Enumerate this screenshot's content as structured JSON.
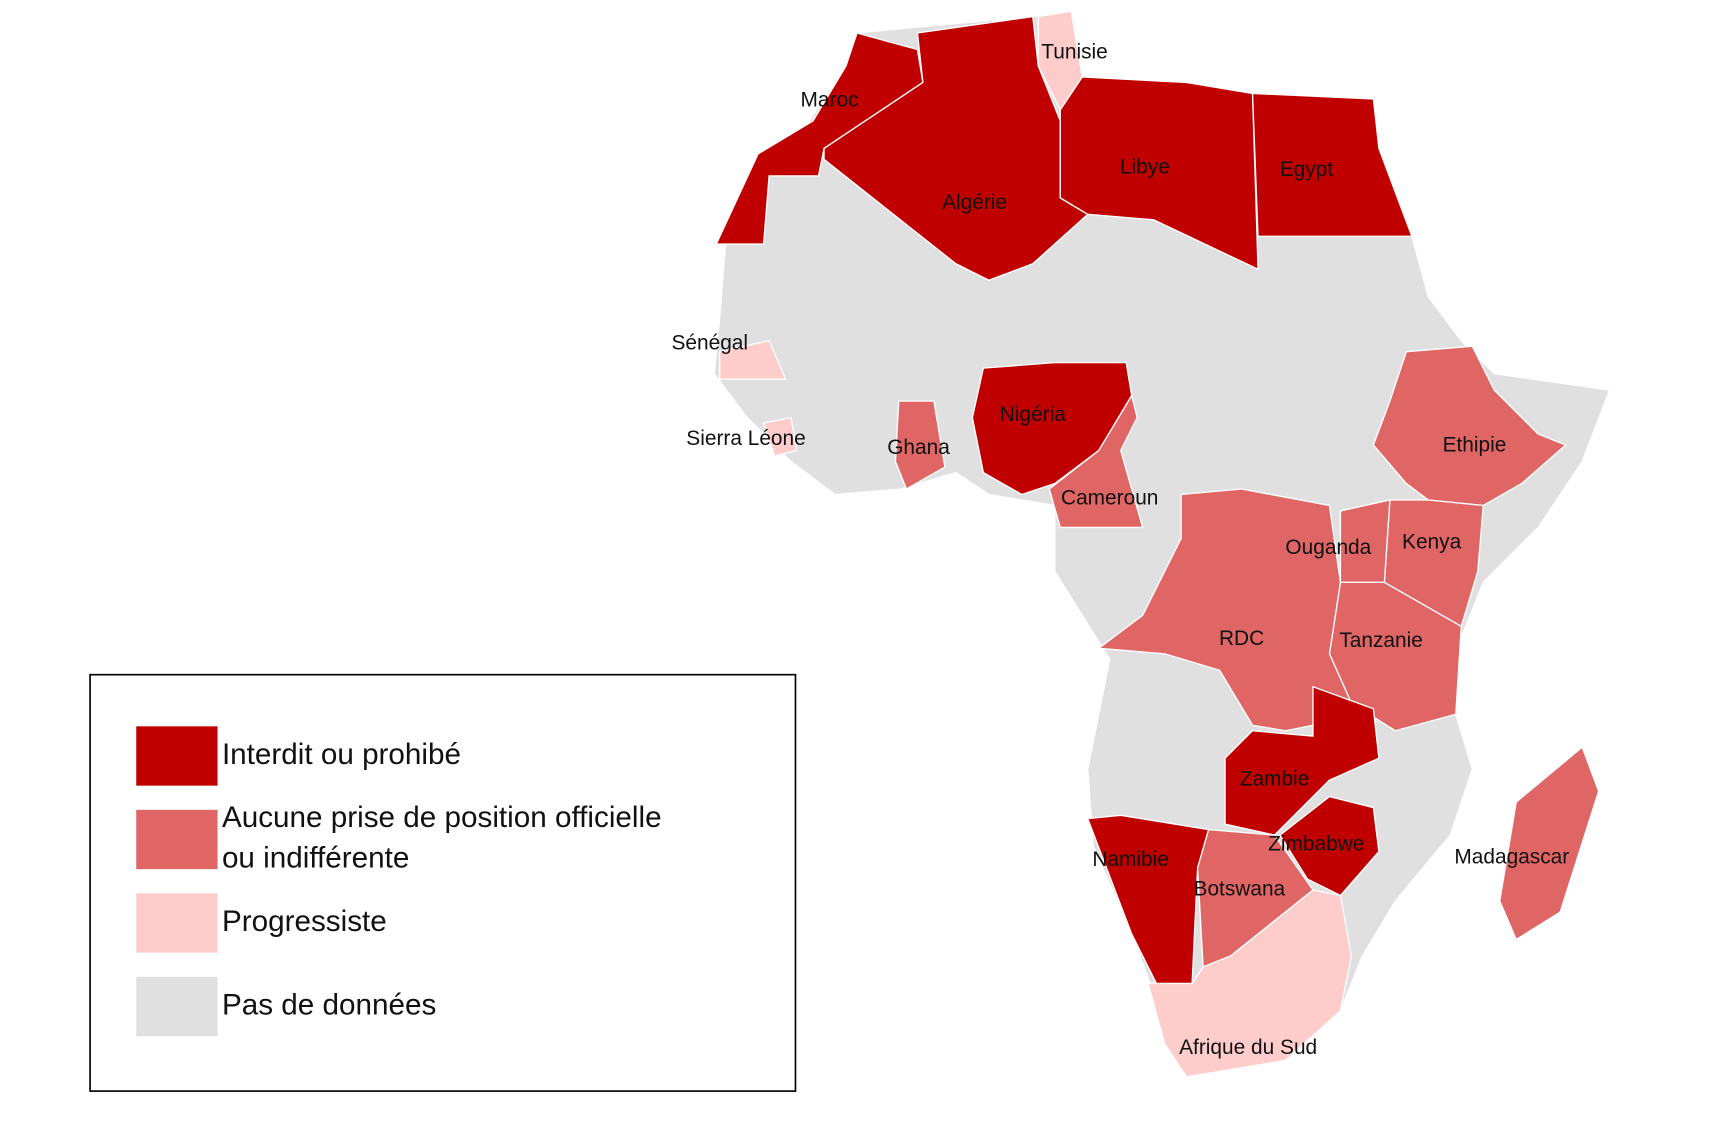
{
  "legend": {
    "items": [
      {
        "lines": [
          "Interdit ou prohibé"
        ],
        "color": "#c00000"
      },
      {
        "lines": [
          "Aucune prise de position officielle",
          "ou indifférente"
        ],
        "color": "#e06666"
      },
      {
        "lines": [
          "Progressiste"
        ],
        "color": "#ffcccc"
      },
      {
        "lines": [
          "Pas de données"
        ],
        "color": "#e0e0e0"
      }
    ]
  },
  "no_data_category": 3,
  "countries": [
    {
      "name": "Maroc",
      "category": 0
    },
    {
      "name": "Algérie",
      "category": 0
    },
    {
      "name": "Tunisie",
      "category": 2
    },
    {
      "name": "Libye",
      "category": 0
    },
    {
      "name": "Egypt",
      "category": 0
    },
    {
      "name": "Sénégal",
      "category": 2
    },
    {
      "name": "Sierra Léone",
      "category": 2
    },
    {
      "name": "Ghana",
      "category": 1
    },
    {
      "name": "Nigéria",
      "category": 0
    },
    {
      "name": "Cameroun",
      "category": 1
    },
    {
      "name": "Ethipie",
      "category": 1
    },
    {
      "name": "Kenya",
      "category": 1
    },
    {
      "name": "Ouganda",
      "category": 1
    },
    {
      "name": "Tanzanie",
      "category": 1
    },
    {
      "name": "RDC",
      "category": 1
    },
    {
      "name": "Zambie",
      "category": 0
    },
    {
      "name": "Zimbabwe",
      "category": 0
    },
    {
      "name": "Namibie",
      "category": 0
    },
    {
      "name": "Botswana",
      "category": 1
    },
    {
      "name": "Afrique du Sud",
      "category": 2
    },
    {
      "name": "Madagascar",
      "category": 1
    }
  ]
}
